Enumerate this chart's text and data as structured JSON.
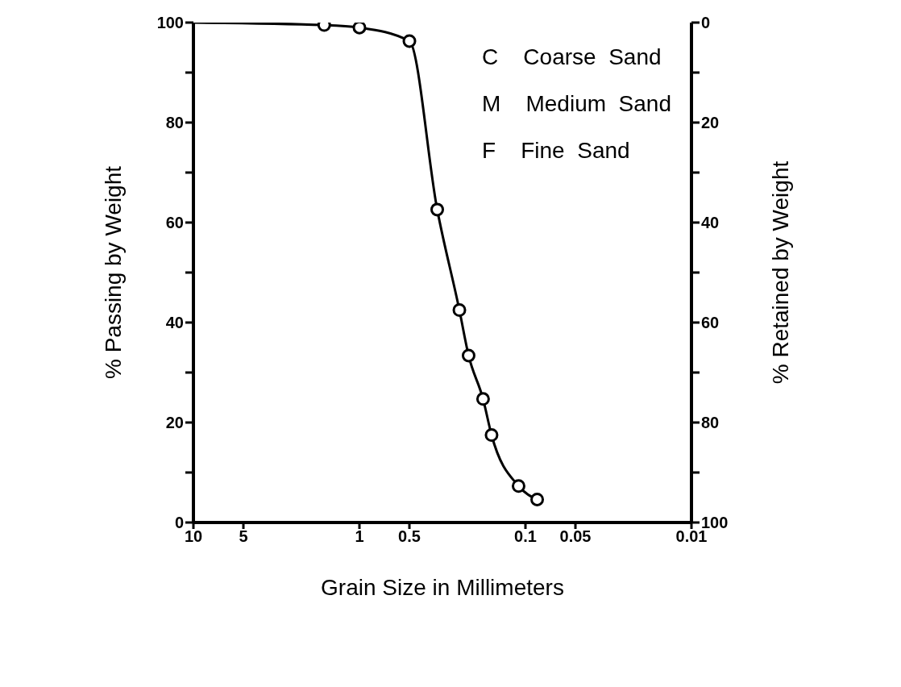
{
  "chart_data": {
    "type": "scatter",
    "xlabel": "Grain Size in Millimeters",
    "ylabel": "% Passing by Weight",
    "y2label": "% Retained by Weight",
    "log": "x",
    "xlim": [
      10,
      0.01
    ],
    "xticks": [
      10,
      5,
      1,
      0.5,
      0.1,
      0.05,
      0.01
    ],
    "ylim": [
      0,
      100
    ],
    "yticks": [
      0,
      {
        "value": 10,
        "label": null
      },
      20,
      {
        "value": 30,
        "label": null
      },
      40,
      {
        "value": 50,
        "label": null
      },
      60,
      {
        "value": 70,
        "label": null
      },
      80,
      {
        "value": 90,
        "label": null
      },
      100
    ],
    "y2lim": [
      100,
      0
    ],
    "y2ticks": [
      0,
      {
        "value": 10,
        "label": null
      },
      20,
      {
        "value": 30,
        "label": null
      },
      40,
      {
        "value": 50,
        "label": null
      },
      60,
      {
        "value": 70,
        "label": null
      },
      80,
      {
        "value": 90,
        "label": null
      },
      100
    ],
    "annotations": [
      "C    Coarse  Sand",
      "M    Medium  Sand",
      "F    Fine  Sand"
    ],
    "series": [
      {
        "type": "line",
        "marker": "none",
        "color": "#000000",
        "x": [
          10,
          1.63,
          1.0,
          0.5,
          0.34,
          0.25,
          0.22,
          0.18,
          0.16,
          0.11,
          0.085
        ],
        "values": [
          100,
          99.5,
          99,
          96.3,
          62.6,
          42.5,
          33.4,
          24.7,
          17.5,
          7.3,
          4.6
        ]
      },
      {
        "marker": "circle",
        "color": "#000000",
        "x": [
          1.63,
          1.0,
          0.5,
          0.34,
          0.25,
          0.22,
          0.18,
          0.16,
          0.11,
          0.085
        ],
        "values": [
          99.5,
          99,
          96.3,
          62.6,
          42.5,
          33.4,
          24.7,
          17.5,
          7.3,
          4.6
        ]
      }
    ]
  }
}
